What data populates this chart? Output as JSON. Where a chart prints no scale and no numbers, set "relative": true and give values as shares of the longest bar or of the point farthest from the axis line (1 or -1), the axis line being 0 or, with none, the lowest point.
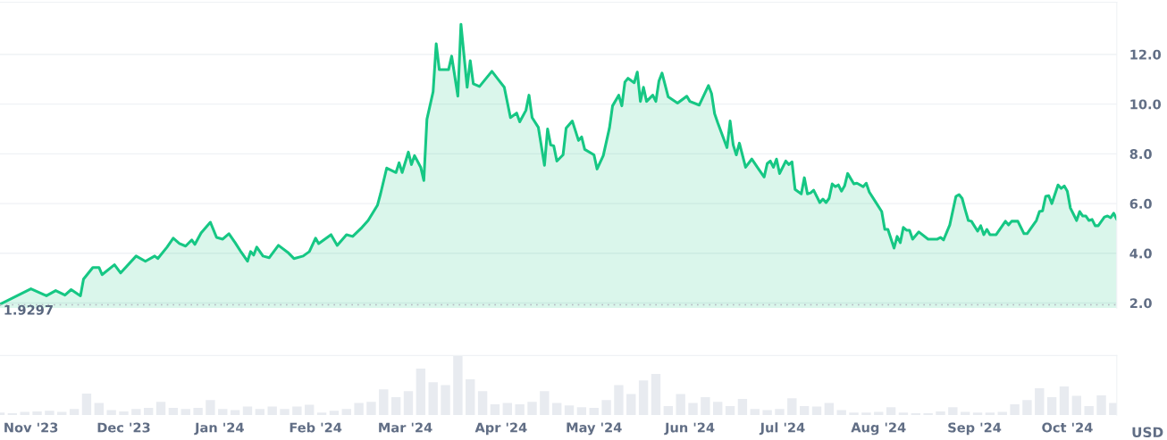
{
  "chart_data": [
    {
      "type": "area",
      "tick_labels": "y",
      "grid": "y",
      "xlim": [
        "2023-10-22",
        "2024-10-17"
      ],
      "ylim": [
        1.8,
        14.1
      ],
      "yticks": [
        {
          "value": 2,
          "label": "2.0"
        },
        {
          "value": 4,
          "label": "4.0"
        },
        {
          "value": 6,
          "label": "6.0"
        },
        {
          "value": 8,
          "label": "8.0"
        },
        {
          "value": 10,
          "label": "10.0"
        },
        {
          "value": 12,
          "label": "12.0"
        }
      ],
      "ref_lines": [
        {
          "axis": "y",
          "value": 1.9297,
          "label": "1.9297",
          "line_style": "dotted",
          "color": "#b5b9c2"
        }
      ],
      "series": [
        {
          "color": "#16c784",
          "x": [
            "2023-10-22",
            "2023-11-01",
            "2023-11-06",
            "2023-11-09",
            "2023-11-12",
            "2023-11-14",
            "2023-11-17",
            "2023-11-18",
            "2023-11-21",
            "2023-11-23",
            "2023-11-24",
            "2023-11-28",
            "2023-11-30",
            "2023-12-05",
            "2023-12-08",
            "2023-12-11",
            "2023-12-12",
            "2023-12-15",
            "2023-12-17",
            "2023-12-19",
            "2023-12-21",
            "2023-12-23",
            "2023-12-24",
            "2023-12-26",
            "2023-12-29",
            "2023-12-31",
            "2024-01-02",
            "2024-01-04",
            "2024-01-06",
            "2024-01-08",
            "2024-01-10",
            "2024-01-11",
            "2024-01-12",
            "2024-01-13",
            "2024-01-15",
            "2024-01-17",
            "2024-01-20",
            "2024-01-23",
            "2024-01-25",
            "2024-01-28",
            "2024-01-30",
            "2024-02-01",
            "2024-02-02",
            "2024-02-06",
            "2024-02-08",
            "2024-02-11",
            "2024-02-13",
            "2024-02-16",
            "2024-02-18",
            "2024-02-21",
            "2024-02-22",
            "2024-02-24",
            "2024-02-27",
            "2024-02-28",
            "2024-02-29",
            "2024-03-02",
            "2024-03-03",
            "2024-03-04",
            "2024-03-06",
            "2024-03-07",
            "2024-03-08",
            "2024-03-10",
            "2024-03-11",
            "2024-03-12",
            "2024-03-15",
            "2024-03-16",
            "2024-03-18",
            "2024-03-19",
            "2024-03-21",
            "2024-03-22",
            "2024-03-23",
            "2024-03-25",
            "2024-03-29",
            "2024-03-31",
            "2024-04-02",
            "2024-04-04",
            "2024-04-06",
            "2024-04-07",
            "2024-04-09",
            "2024-04-10",
            "2024-04-11",
            "2024-04-13",
            "2024-04-15",
            "2024-04-16",
            "2024-04-17",
            "2024-04-18",
            "2024-04-19",
            "2024-04-21",
            "2024-04-22",
            "2024-04-24",
            "2024-04-26",
            "2024-04-27",
            "2024-04-28",
            "2024-05-01",
            "2024-05-02",
            "2024-05-04",
            "2024-05-06",
            "2024-05-07",
            "2024-05-09",
            "2024-05-10",
            "2024-05-11",
            "2024-05-12",
            "2024-05-14",
            "2024-05-15",
            "2024-05-16",
            "2024-05-17",
            "2024-05-18",
            "2024-05-20",
            "2024-05-21",
            "2024-05-22",
            "2024-05-23",
            "2024-05-25",
            "2024-05-28",
            "2024-05-31",
            "2024-06-01",
            "2024-06-04",
            "2024-06-07",
            "2024-06-08",
            "2024-06-09",
            "2024-06-10",
            "2024-06-13",
            "2024-06-14",
            "2024-06-15",
            "2024-06-16",
            "2024-06-17",
            "2024-06-19",
            "2024-06-21",
            "2024-06-23",
            "2024-06-25",
            "2024-06-26",
            "2024-06-27",
            "2024-06-28",
            "2024-06-29",
            "2024-06-30",
            "2024-07-02",
            "2024-07-03",
            "2024-07-04",
            "2024-07-05",
            "2024-07-07",
            "2024-07-08",
            "2024-07-09",
            "2024-07-10",
            "2024-07-11",
            "2024-07-13",
            "2024-07-14",
            "2024-07-15",
            "2024-07-16",
            "2024-07-17",
            "2024-07-18",
            "2024-07-19",
            "2024-07-20",
            "2024-07-21",
            "2024-07-22",
            "2024-07-24",
            "2024-07-25",
            "2024-07-27",
            "2024-07-28",
            "2024-07-29",
            "2024-07-31",
            "2024-08-02",
            "2024-08-03",
            "2024-08-04",
            "2024-08-06",
            "2024-08-07",
            "2024-08-08",
            "2024-08-09",
            "2024-08-10",
            "2024-08-11",
            "2024-08-12",
            "2024-08-14",
            "2024-08-17",
            "2024-08-20",
            "2024-08-21",
            "2024-08-22",
            "2024-08-24",
            "2024-08-26",
            "2024-08-27",
            "2024-08-28",
            "2024-08-29",
            "2024-08-30",
            "2024-08-31",
            "2024-09-02",
            "2024-09-03",
            "2024-09-04",
            "2024-09-05",
            "2024-09-06",
            "2024-09-08",
            "2024-09-09",
            "2024-09-11",
            "2024-09-12",
            "2024-09-13",
            "2024-09-15",
            "2024-09-17",
            "2024-09-18",
            "2024-09-21",
            "2024-09-22",
            "2024-09-23",
            "2024-09-24",
            "2024-09-25",
            "2024-09-26",
            "2024-09-28",
            "2024-09-29",
            "2024-09-30",
            "2024-10-01",
            "2024-10-02",
            "2024-10-04",
            "2024-10-05",
            "2024-10-06",
            "2024-10-07",
            "2024-10-08",
            "2024-10-09",
            "2024-10-10",
            "2024-10-11",
            "2024-10-13",
            "2024-10-14",
            "2024-10-15",
            "2024-10-16",
            "2024-10-17"
          ],
          "values": [
            1.95,
            2.57,
            2.29,
            2.5,
            2.32,
            2.54,
            2.29,
            2.96,
            3.43,
            3.43,
            3.14,
            3.54,
            3.21,
            3.89,
            3.68,
            3.89,
            3.79,
            4.25,
            4.61,
            4.39,
            4.29,
            4.54,
            4.36,
            4.82,
            5.25,
            4.64,
            4.57,
            4.79,
            4.43,
            4.04,
            3.68,
            4.07,
            3.93,
            4.25,
            3.89,
            3.82,
            4.32,
            4.04,
            3.79,
            3.89,
            4.07,
            4.61,
            4.39,
            4.75,
            4.32,
            4.75,
            4.68,
            5.04,
            5.32,
            5.93,
            6.39,
            7.43,
            7.25,
            7.64,
            7.25,
            8.07,
            7.57,
            7.93,
            7.46,
            6.93,
            9.39,
            10.5,
            12.43,
            11.39,
            11.39,
            11.93,
            10.32,
            13.21,
            10.68,
            11.75,
            10.82,
            10.71,
            11.32,
            11.0,
            10.68,
            9.46,
            9.64,
            9.29,
            9.75,
            10.36,
            9.46,
            9.07,
            7.54,
            9.0,
            8.36,
            8.32,
            7.71,
            7.96,
            9.04,
            9.32,
            8.54,
            8.68,
            8.18,
            7.96,
            7.39,
            7.93,
            9.04,
            9.93,
            10.36,
            9.93,
            10.89,
            11.04,
            10.86,
            11.29,
            10.11,
            10.68,
            10.11,
            10.36,
            10.11,
            10.93,
            11.25,
            10.29,
            10.04,
            10.32,
            10.11,
            9.96,
            10.75,
            10.43,
            9.61,
            9.25,
            8.25,
            9.32,
            8.36,
            7.96,
            8.43,
            7.46,
            7.79,
            7.43,
            7.07,
            7.61,
            7.71,
            7.46,
            7.79,
            7.21,
            7.71,
            7.57,
            7.68,
            6.57,
            6.39,
            7.04,
            6.39,
            6.43,
            6.54,
            6.04,
            6.18,
            6.04,
            6.21,
            6.79,
            6.68,
            6.75,
            6.5,
            6.71,
            7.21,
            6.79,
            6.82,
            6.68,
            6.82,
            6.46,
            6.07,
            5.68,
            4.96,
            4.96,
            4.21,
            4.68,
            4.43,
            5.04,
            4.93,
            4.93,
            4.57,
            4.86,
            4.57,
            4.57,
            4.64,
            4.54,
            5.14,
            6.29,
            6.36,
            6.21,
            5.75,
            5.32,
            5.29,
            4.89,
            5.11,
            4.75,
            4.96,
            4.75,
            4.75,
            4.93,
            5.29,
            5.14,
            5.29,
            5.29,
            4.79,
            4.79,
            5.32,
            5.68,
            5.71,
            6.29,
            6.32,
            6.0,
            6.75,
            6.61,
            6.71,
            6.5,
            5.82,
            5.32,
            5.68,
            5.5,
            5.5,
            5.32,
            5.36,
            5.11,
            5.11,
            5.46,
            5.5,
            5.43,
            5.61,
            5.36
          ]
        }
      ]
    },
    {
      "type": "bar",
      "relative": true,
      "ylabel": "USD",
      "tick_labels": "x",
      "xlim": [
        "2023-10-22",
        "2024-10-17"
      ],
      "xticks": [
        {
          "value": "2023-11-01",
          "label": "Nov '23"
        },
        {
          "value": "2023-12-01",
          "label": "Dec '23"
        },
        {
          "value": "2024-01-01",
          "label": "Jan '24"
        },
        {
          "value": "2024-02-01",
          "label": "Feb '24"
        },
        {
          "value": "2024-03-01",
          "label": "Mar '24"
        },
        {
          "value": "2024-04-01",
          "label": "Apr '24"
        },
        {
          "value": "2024-05-01",
          "label": "May '24"
        },
        {
          "value": "2024-06-01",
          "label": "Jun '24"
        },
        {
          "value": "2024-07-01",
          "label": "Jul '24"
        },
        {
          "value": "2024-08-01",
          "label": "Aug '24"
        },
        {
          "value": "2024-09-01",
          "label": "Sep '24"
        },
        {
          "value": "2024-10-01",
          "label": "Oct '24"
        }
      ],
      "series": [
        {
          "color": "#e8ebf0",
          "x": [
            "2023-10-22",
            "2023-10-26",
            "2023-10-30",
            "2023-11-03",
            "2023-11-07",
            "2023-11-11",
            "2023-11-15",
            "2023-11-19",
            "2023-11-23",
            "2023-11-27",
            "2023-12-01",
            "2023-12-05",
            "2023-12-09",
            "2023-12-13",
            "2023-12-17",
            "2023-12-21",
            "2023-12-25",
            "2023-12-29",
            "2024-01-02",
            "2024-01-06",
            "2024-01-10",
            "2024-01-14",
            "2024-01-18",
            "2024-01-22",
            "2024-01-26",
            "2024-01-30",
            "2024-02-03",
            "2024-02-07",
            "2024-02-11",
            "2024-02-15",
            "2024-02-19",
            "2024-02-23",
            "2024-02-27",
            "2024-03-02",
            "2024-03-06",
            "2024-03-10",
            "2024-03-14",
            "2024-03-18",
            "2024-03-22",
            "2024-03-26",
            "2024-03-30",
            "2024-04-03",
            "2024-04-07",
            "2024-04-11",
            "2024-04-15",
            "2024-04-19",
            "2024-04-23",
            "2024-04-27",
            "2024-05-01",
            "2024-05-05",
            "2024-05-09",
            "2024-05-13",
            "2024-05-17",
            "2024-05-21",
            "2024-05-25",
            "2024-05-29",
            "2024-06-02",
            "2024-06-06",
            "2024-06-10",
            "2024-06-14",
            "2024-06-18",
            "2024-06-22",
            "2024-06-26",
            "2024-06-30",
            "2024-07-04",
            "2024-07-08",
            "2024-07-12",
            "2024-07-16",
            "2024-07-20",
            "2024-07-24",
            "2024-07-28",
            "2024-08-01",
            "2024-08-05",
            "2024-08-09",
            "2024-08-13",
            "2024-08-17",
            "2024-08-21",
            "2024-08-25",
            "2024-08-29",
            "2024-09-02",
            "2024-09-06",
            "2024-09-10",
            "2024-09-14",
            "2024-09-18",
            "2024-09-22",
            "2024-09-26",
            "2024-09-30",
            "2024-10-04",
            "2024-10-08",
            "2024-10-12",
            "2024-10-16"
          ],
          "values": [
            0.04,
            0.03,
            0.05,
            0.06,
            0.07,
            0.05,
            0.1,
            0.36,
            0.2,
            0.08,
            0.06,
            0.1,
            0.12,
            0.22,
            0.12,
            0.1,
            0.12,
            0.25,
            0.1,
            0.08,
            0.14,
            0.1,
            0.14,
            0.1,
            0.14,
            0.17,
            0.04,
            0.07,
            0.1,
            0.2,
            0.22,
            0.43,
            0.3,
            0.4,
            0.78,
            0.55,
            0.5,
            1.0,
            0.6,
            0.4,
            0.18,
            0.2,
            0.18,
            0.22,
            0.4,
            0.2,
            0.16,
            0.13,
            0.12,
            0.25,
            0.5,
            0.35,
            0.58,
            0.69,
            0.15,
            0.35,
            0.2,
            0.3,
            0.22,
            0.15,
            0.27,
            0.1,
            0.08,
            0.1,
            0.28,
            0.15,
            0.14,
            0.2,
            0.08,
            0.04,
            0.04,
            0.05,
            0.13,
            0.04,
            0.03,
            0.03,
            0.06,
            0.13,
            0.05,
            0.04,
            0.04,
            0.05,
            0.18,
            0.25,
            0.45,
            0.3,
            0.48,
            0.32,
            0.15,
            0.33,
            0.2
          ]
        }
      ]
    }
  ]
}
